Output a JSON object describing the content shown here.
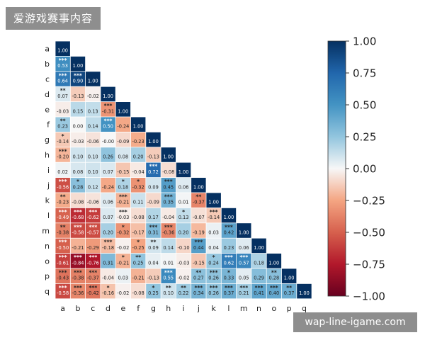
{
  "overlay": {
    "top_label": "爱游戏赛事内容",
    "bottom_label": "wap-line-igame.com"
  },
  "chart_data": {
    "type": "heatmap",
    "labels": [
      "a",
      "b",
      "c",
      "d",
      "e",
      "f",
      "g",
      "h",
      "i",
      "j",
      "k",
      "l",
      "m",
      "n",
      "o",
      "p",
      "q"
    ],
    "colorbar": {
      "min": -1,
      "max": 1,
      "ticks": [
        "1.00",
        "0.75",
        "0.50",
        "0.25",
        "0.00",
        "−0.25",
        "−0.50",
        "−0.75",
        "−1.00"
      ],
      "tick_values": [
        1,
        0.75,
        0.5,
        0.25,
        0,
        -0.25,
        -0.5,
        -0.75,
        -1
      ]
    },
    "rows": [
      {
        "v": [
          "1.00"
        ],
        "s": [
          ""
        ]
      },
      {
        "v": [
          "0.53",
          "1.00"
        ],
        "s": [
          "***",
          ""
        ]
      },
      {
        "v": [
          "0.64",
          "0.90",
          "1.00"
        ],
        "s": [
          "***",
          "***",
          ""
        ]
      },
      {
        "v": [
          "0.07",
          "-0.13",
          "-0.02",
          "1.00"
        ],
        "s": [
          "**",
          "",
          "",
          ""
        ]
      },
      {
        "v": [
          "-0.03",
          "0.15",
          "0.13",
          "-0.31",
          "1.00"
        ],
        "s": [
          "",
          "",
          "",
          "***",
          ""
        ]
      },
      {
        "v": [
          "0.23",
          "0.00",
          "0.14",
          "0.50",
          "-0.24",
          "1.00"
        ],
        "s": [
          "**",
          "",
          "",
          "***",
          "",
          ""
        ]
      },
      {
        "v": [
          "-0.14",
          "-0.03",
          "-0.06",
          "-0.00",
          "-0.09",
          "-0.23",
          "1.00"
        ],
        "s": [
          "*",
          "",
          "",
          "",
          "",
          "",
          ""
        ]
      },
      {
        "v": [
          "-0.20",
          "0.10",
          "0.10",
          "0.26",
          "0.08",
          "0.20",
          "-0.13",
          "1.00"
        ],
        "s": [
          "***",
          "",
          "",
          "",
          "",
          "",
          "",
          ""
        ]
      },
      {
        "v": [
          "0.02",
          "0.08",
          "0.10",
          "0.07",
          "-0.15",
          "-0.04",
          "0.72",
          "-0.08",
          "1.00"
        ],
        "s": [
          "",
          "",
          "",
          "",
          "",
          "",
          "***",
          "",
          ""
        ]
      },
      {
        "v": [
          "-0.56",
          "0.28",
          "0.12",
          "-0.24",
          "0.18",
          "-0.32",
          "0.09",
          "0.45",
          "0.06",
          "1.00"
        ],
        "s": [
          "***",
          "*",
          "",
          "",
          "*",
          "*",
          "",
          "***",
          "",
          ""
        ]
      },
      {
        "v": [
          "-0.23",
          "-0.08",
          "-0.06",
          "0.06",
          "-0.21",
          "0.11",
          "-0.09",
          "0.35",
          "0.01",
          "-0.37",
          "1.00"
        ],
        "s": [
          "**",
          "",
          "",
          "",
          "***",
          "",
          "",
          "***",
          "",
          "**",
          ""
        ]
      },
      {
        "v": [
          "-0.49",
          "-0.68",
          "-0.62",
          "0.07",
          "-0.03",
          "-0.08",
          "0.17",
          "-0.04",
          "0.13",
          "-0.07",
          "-0.14",
          "1.00"
        ],
        "s": [
          "***",
          "***",
          "***",
          "",
          "***",
          "",
          "",
          "",
          "*",
          "",
          "***",
          ""
        ]
      },
      {
        "v": [
          "-0.38",
          "-0.58",
          "-0.57",
          "0.20",
          "-0.32",
          "-0.17",
          "0.31",
          "-0.36",
          "0.20",
          "-0.19",
          "0.03",
          "0.42",
          "1.00"
        ],
        "s": [
          "**",
          "***",
          "***",
          "",
          "*",
          "",
          "***",
          "***",
          "",
          "",
          "",
          "***",
          ""
        ]
      },
      {
        "v": [
          "-0.50",
          "-0.21",
          "-0.29",
          "-0.18",
          "-0.02",
          "-0.25",
          "0.09",
          "0.14",
          "-0.10",
          "0.44",
          "0.04",
          "0.23",
          "0.06",
          "1.00"
        ],
        "s": [
          "***",
          "",
          "",
          "***",
          "",
          "*",
          "**",
          "",
          "",
          "***",
          "",
          "",
          "",
          ""
        ]
      },
      {
        "v": [
          "-0.61",
          "-0.84",
          "-0.76",
          "0.31",
          "-0.21",
          "0.25",
          "0.04",
          "0.01",
          "-0.03",
          "-0.15",
          "0.24",
          "0.62",
          "0.57",
          "0.18",
          "1.00"
        ],
        "s": [
          "***",
          "***",
          "***",
          "",
          "*",
          "**",
          "",
          "",
          "",
          "",
          "*",
          "***",
          "***",
          "",
          ""
        ]
      },
      {
        "v": [
          "-0.43",
          "-0.38",
          "-0.37",
          "-0.04",
          "0.03",
          "-0.21",
          "-0.13",
          "0.55",
          "-0.02",
          "0.27",
          "0.26",
          "0.33",
          "0.05",
          "0.29",
          "0.28",
          "1.00"
        ],
        "s": [
          "***",
          "***",
          "***",
          "",
          "",
          "",
          "",
          "***",
          "",
          "**",
          "***",
          "*",
          "",
          "",
          "**",
          ""
        ]
      },
      {
        "v": [
          "-0.58",
          "-0.36",
          "-0.42",
          "-0.16",
          "-0.02",
          "-0.08",
          "0.25",
          "0.10",
          "0.22",
          "0.34",
          "0.26",
          "0.37",
          "0.21",
          "0.41",
          "0.40",
          "0.37",
          "1.00"
        ],
        "s": [
          "***",
          "***",
          "***",
          "*",
          "",
          "",
          "*",
          "**",
          "**",
          "***",
          "***",
          "***",
          "***",
          "***",
          "***",
          "**",
          ""
        ]
      }
    ]
  }
}
